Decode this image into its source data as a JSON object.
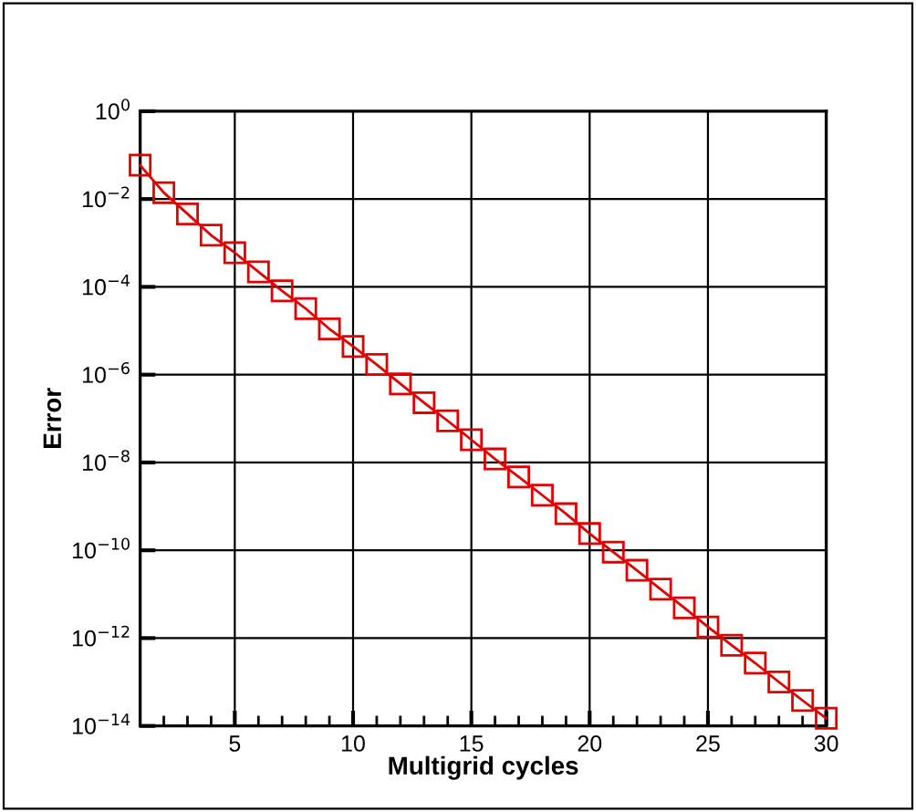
{
  "chart_data": {
    "type": "line",
    "xlabel": "Multigrid cycles",
    "ylabel": "Error",
    "x": [
      1,
      2,
      3,
      4,
      5,
      6,
      7,
      8,
      9,
      10,
      11,
      12,
      13,
      14,
      15,
      16,
      17,
      18,
      19,
      20,
      21,
      22,
      23,
      24,
      25,
      26,
      27,
      28,
      29,
      30
    ],
    "series": [
      {
        "color": "#e00000",
        "values": [
          0.059,
          0.014,
          0.0046,
          0.0015,
          0.0006,
          0.00022,
          8.1e-05,
          3.2e-05,
          1.1e-05,
          4.4e-06,
          1.7e-06,
          6.2e-07,
          2.3e-07,
          8.9e-08,
          3.3e-08,
          1.2e-08,
          4.7e-09,
          1.8e-09,
          6.8e-10,
          2.4e-10,
          9.1e-11,
          3.5e-11,
          1.3e-11,
          4.9e-12,
          1.8e-12,
          6.9e-13,
          2.7e-13,
          1e-13,
          3.8e-14,
          1.5e-14
        ]
      }
    ],
    "marker": "square",
    "line_style": "solid",
    "log": "y",
    "grid": true,
    "xlim": [
      1,
      30
    ],
    "ylim": [
      1e-14,
      1
    ],
    "xticks": [
      {
        "value": 2,
        "label": null
      },
      {
        "value": 3,
        "label": null
      },
      {
        "value": 4,
        "label": null
      },
      5,
      {
        "value": 6,
        "label": null
      },
      {
        "value": 7,
        "label": null
      },
      {
        "value": 8,
        "label": null
      },
      {
        "value": 9,
        "label": null
      },
      10,
      {
        "value": 11,
        "label": null
      },
      {
        "value": 12,
        "label": null
      },
      {
        "value": 13,
        "label": null
      },
      {
        "value": 14,
        "label": null
      },
      15,
      {
        "value": 16,
        "label": null
      },
      {
        "value": 17,
        "label": null
      },
      {
        "value": 18,
        "label": null
      },
      {
        "value": 19,
        "label": null
      },
      20,
      {
        "value": 21,
        "label": null
      },
      {
        "value": 22,
        "label": null
      },
      {
        "value": 23,
        "label": null
      },
      {
        "value": 24,
        "label": null
      },
      25,
      {
        "value": 26,
        "label": null
      },
      {
        "value": 27,
        "label": null
      },
      {
        "value": 28,
        "label": null
      },
      {
        "value": 29,
        "label": null
      },
      30
    ],
    "yticks": [
      {
        "value": 1e-14,
        "label": "10$^{−14}$"
      },
      {
        "value": 1e-12,
        "label": "10$^{−12}$"
      },
      {
        "value": 1e-10,
        "label": "10$^{−10}$"
      },
      {
        "value": 1e-08,
        "label": "10$^{−8}$"
      },
      {
        "value": 1e-06,
        "label": "10$^{−6}$"
      },
      {
        "value": 0.0001,
        "label": "10$^{−4}$"
      },
      {
        "value": 0.01,
        "label": "10$^{−2}$"
      },
      {
        "value": 1,
        "label": "10$^{0}$"
      }
    ]
  }
}
